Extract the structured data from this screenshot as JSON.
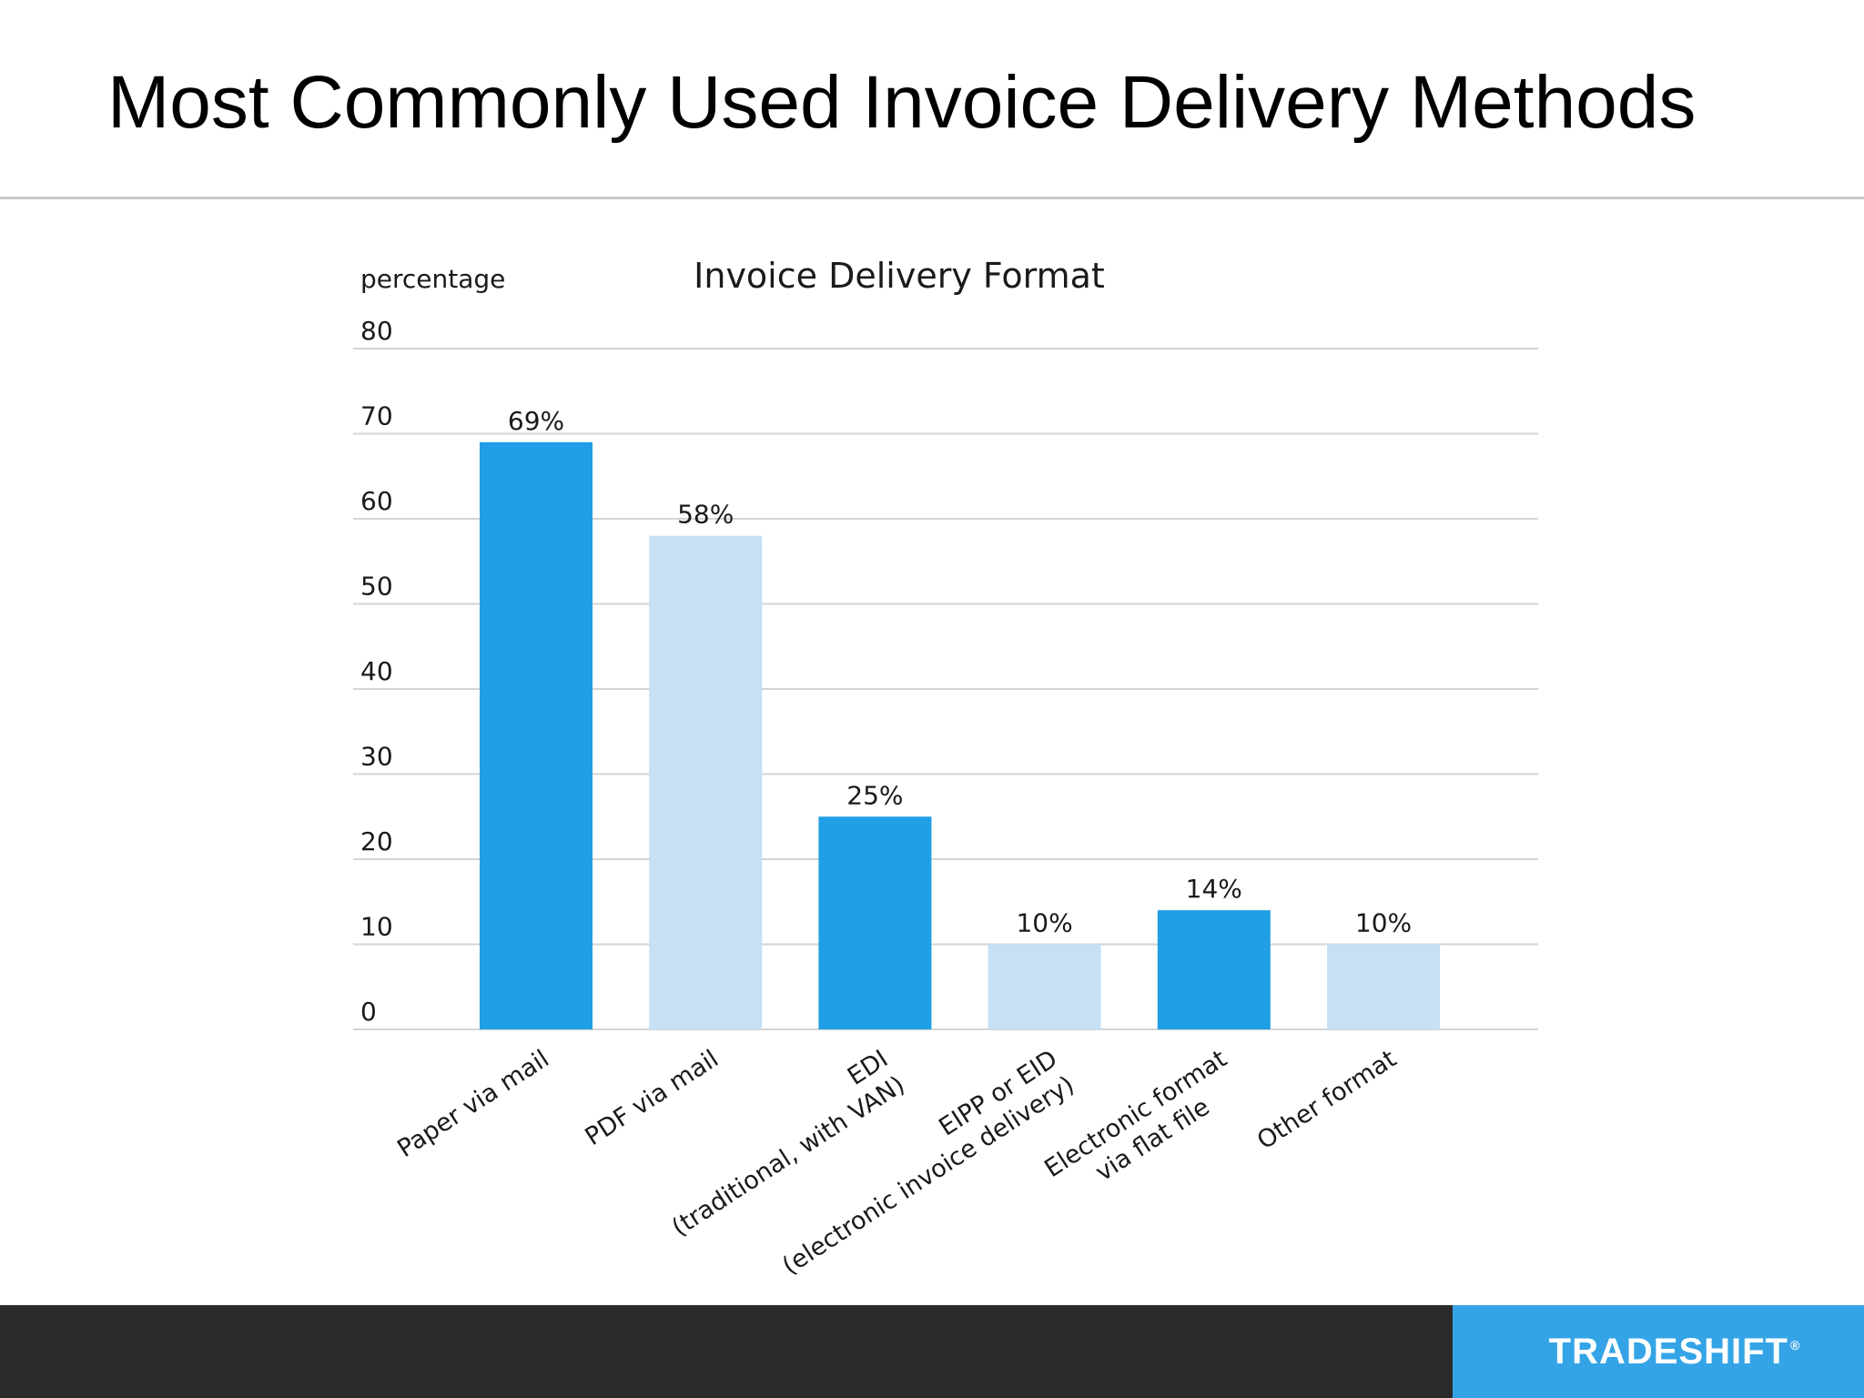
{
  "slide": {
    "title": "Most Commonly Used Invoice Delivery Methods"
  },
  "footer": {
    "logo_text": "TRADESHIFT",
    "logo_mark": "®"
  },
  "colors": {
    "dark_bar": "#209fe6",
    "light_bar": "#c6e0f6",
    "gridline": "#d4d4d4",
    "text": "#1a1a1a",
    "footer": "#2b2b2c",
    "logo_bg": "#34a4e6"
  },
  "chart_data": {
    "type": "bar",
    "title": "Invoice Delivery Format",
    "ylabel": "percentage",
    "xlabel": "",
    "ylim": [
      0,
      80
    ],
    "yticks": [
      0,
      10,
      20,
      30,
      40,
      50,
      60,
      70,
      80
    ],
    "grid": true,
    "categories": [
      [
        "Paper via mail"
      ],
      [
        "PDF via mail"
      ],
      [
        "EDI",
        "(traditional, with VAN)"
      ],
      [
        "EIPP or EID",
        "(electronic invoice delivery)"
      ],
      [
        "Electronic format",
        "via flat file"
      ],
      [
        "Other format"
      ]
    ],
    "values": [
      69,
      58,
      25,
      10,
      14,
      10
    ],
    "data_labels": [
      "69%",
      "58%",
      "25%",
      "10%",
      "14%",
      "10%"
    ],
    "bar_shades": [
      "dark",
      "light",
      "dark",
      "light",
      "dark",
      "light"
    ]
  }
}
